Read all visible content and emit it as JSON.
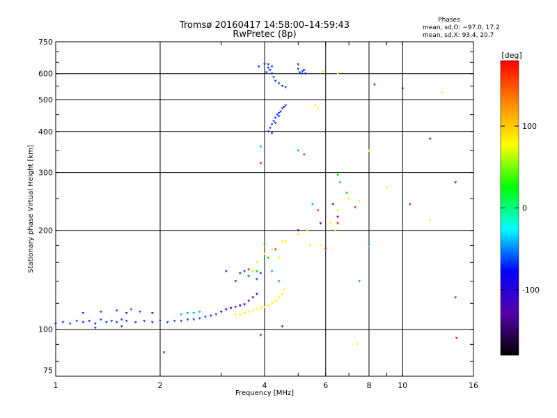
{
  "chart_data": {
    "type": "scatter",
    "title": "Tromsø 20160417 14:58:00–14:59:43",
    "subtitle": "RwPretec (8p)",
    "xlabel": "Frequency [MHz]",
    "ylabel": "Stationary phase Virtual Height [km]",
    "x_scale": "log",
    "y_scale": "log",
    "xlim": [
      1,
      16
    ],
    "ylim": [
      72,
      750
    ],
    "x_ticks": [
      1,
      2,
      4,
      6,
      8,
      10,
      16
    ],
    "y_ticks": [
      75,
      100,
      200,
      300,
      400,
      500,
      600,
      750
    ],
    "grid": true,
    "phases_box": {
      "title": "Phases",
      "line1": "mean, sd,O: −97.0, 17.2",
      "line2": "mean, sd,X:  93.4, 20.7"
    },
    "colorbar": {
      "label": "[deg]",
      "range": [
        -180,
        180
      ],
      "ticks": [
        100,
        0,
        -100
      ],
      "colormap": [
        "#000000",
        "#5500aa",
        "#0000ff",
        "#00ffff",
        "#00ff00",
        "#ffff00",
        "#ff8800",
        "#ff0000"
      ]
    },
    "series": [
      {
        "name": "",
        "color": "#1e3cff",
        "points": [
          [
            1.0,
            104
          ],
          [
            1.05,
            105
          ],
          [
            1.1,
            104
          ],
          [
            1.15,
            106
          ],
          [
            1.2,
            105
          ],
          [
            1.25,
            106
          ],
          [
            1.3,
            104
          ],
          [
            1.35,
            107
          ],
          [
            1.4,
            105
          ],
          [
            1.45,
            106
          ],
          [
            1.5,
            105
          ],
          [
            1.55,
            107
          ],
          [
            1.6,
            106
          ],
          [
            1.7,
            105
          ],
          [
            1.8,
            106
          ],
          [
            1.9,
            105
          ],
          [
            2.0,
            106
          ],
          [
            2.1,
            105
          ],
          [
            2.2,
            106
          ],
          [
            2.3,
            106
          ],
          [
            2.4,
            107
          ],
          [
            2.5,
            107
          ],
          [
            2.6,
            108
          ],
          [
            2.7,
            109
          ],
          [
            2.8,
            110
          ],
          [
            2.9,
            111
          ],
          [
            3.0,
            113
          ],
          [
            3.1,
            115
          ],
          [
            3.2,
            116
          ],
          [
            3.3,
            117
          ],
          [
            3.4,
            118
          ],
          [
            3.5,
            119
          ],
          [
            1.2,
            112
          ],
          [
            1.35,
            113
          ],
          [
            1.5,
            114
          ],
          [
            1.6,
            112
          ],
          [
            1.65,
            115
          ],
          [
            1.75,
            113
          ],
          [
            1.9,
            112
          ],
          [
            1.3,
            101
          ],
          [
            1.55,
            102
          ],
          [
            2.05,
            85
          ],
          [
            3.9,
            96
          ],
          [
            4.5,
            102
          ],
          [
            3.6,
            145
          ],
          [
            3.7,
            150
          ],
          [
            3.5,
            150
          ],
          [
            3.8,
            142
          ],
          [
            3.9,
            148
          ],
          [
            3.3,
            140
          ],
          [
            3.1,
            150
          ],
          [
            3.4,
            148
          ],
          [
            4.1,
            400
          ],
          [
            4.15,
            410
          ],
          [
            4.2,
            420
          ],
          [
            4.25,
            430
          ],
          [
            4.3,
            440
          ],
          [
            4.35,
            450
          ],
          [
            4.4,
            455
          ],
          [
            4.45,
            460
          ],
          [
            4.5,
            470
          ],
          [
            4.55,
            475
          ],
          [
            4.6,
            480
          ],
          [
            4.2,
            395
          ],
          [
            4.3,
            425
          ],
          [
            4.4,
            445
          ],
          [
            4.0,
            640
          ],
          [
            4.1,
            625
          ],
          [
            4.15,
            615
          ],
          [
            4.2,
            600
          ],
          [
            4.25,
            585
          ],
          [
            4.3,
            570
          ],
          [
            4.4,
            560
          ],
          [
            4.5,
            550
          ],
          [
            4.6,
            545
          ],
          [
            4.1,
            640
          ],
          [
            4.2,
            630
          ],
          [
            4.05,
            605
          ],
          [
            5.0,
            620
          ],
          [
            5.05,
            605
          ],
          [
            5.1,
            600
          ],
          [
            5.15,
            610
          ],
          [
            5.2,
            615
          ],
          [
            5.25,
            600
          ],
          [
            3.85,
            630
          ],
          [
            5.0,
            640
          ],
          [
            8.3,
            555
          ],
          [
            12.0,
            380
          ],
          [
            14.2,
            280
          ]
        ]
      },
      {
        "name": "",
        "color": "#ffff00",
        "points": [
          [
            3.3,
            111
          ],
          [
            3.4,
            111
          ],
          [
            3.5,
            112
          ],
          [
            3.6,
            113
          ],
          [
            3.7,
            114
          ],
          [
            3.8,
            115
          ],
          [
            3.9,
            116
          ],
          [
            4.0,
            117
          ],
          [
            4.1,
            118
          ],
          [
            4.2,
            120
          ],
          [
            4.3,
            122
          ],
          [
            4.4,
            125
          ],
          [
            4.5,
            128
          ],
          [
            4.55,
            132
          ],
          [
            3.7,
            150
          ],
          [
            3.8,
            160
          ],
          [
            4.0,
            170
          ],
          [
            4.2,
            175
          ],
          [
            4.4,
            165
          ],
          [
            4.6,
            185
          ],
          [
            5.0,
            195
          ],
          [
            5.4,
            180
          ],
          [
            5.8,
            180
          ],
          [
            6.2,
            210
          ],
          [
            6.5,
            230
          ],
          [
            7.0,
            250
          ],
          [
            7.5,
            245
          ],
          [
            9.0,
            270
          ],
          [
            12.0,
            215
          ],
          [
            8.0,
            350
          ],
          [
            5.6,
            480
          ],
          [
            5.7,
            470
          ],
          [
            5.9,
            610
          ],
          [
            6.5,
            600
          ],
          [
            13.0,
            525
          ],
          [
            7.4,
            90
          ],
          [
            4.5,
            185
          ],
          [
            5.3,
            200
          ],
          [
            6.4,
            200
          ]
        ]
      },
      {
        "name": "",
        "color": "#00b4ff",
        "points": [
          [
            2.3,
            111
          ],
          [
            2.4,
            112
          ],
          [
            2.5,
            112
          ],
          [
            2.6,
            113
          ],
          [
            4.4,
            140
          ],
          [
            4.2,
            150
          ],
          [
            3.9,
            360
          ],
          [
            5.5,
            240
          ],
          [
            6.6,
            280
          ],
          [
            7.5,
            140
          ],
          [
            8.0,
            180
          ],
          [
            5.0,
            350
          ]
        ]
      },
      {
        "name": "",
        "color": "#ff2020",
        "points": [
          [
            3.6,
            152
          ],
          [
            5.2,
            340
          ],
          [
            5.7,
            230
          ],
          [
            6.0,
            175
          ],
          [
            6.5,
            210
          ],
          [
            7.3,
            235
          ],
          [
            10.5,
            240
          ],
          [
            14.2,
            125
          ],
          [
            14.3,
            94
          ],
          [
            3.9,
            320
          ],
          [
            4.3,
            175
          ]
        ]
      },
      {
        "name": "",
        "color": "#6a00b0",
        "points": [
          [
            3.0,
            113
          ],
          [
            3.1,
            115
          ],
          [
            3.2,
            116
          ],
          [
            3.4,
            118
          ],
          [
            3.5,
            119
          ],
          [
            3.6,
            122
          ],
          [
            3.7,
            125
          ],
          [
            3.8,
            128
          ],
          [
            5.0,
            200
          ],
          [
            5.8,
            210
          ],
          [
            6.3,
            240
          ],
          [
            10.0,
            540
          ],
          [
            6.5,
            220
          ]
        ]
      },
      {
        "name": "",
        "color": "#00e000",
        "points": [
          [
            3.6,
            145
          ],
          [
            3.8,
            150
          ],
          [
            4.1,
            165
          ],
          [
            4.0,
            180
          ],
          [
            6.9,
            260
          ],
          [
            6.5,
            295
          ]
        ]
      }
    ]
  }
}
